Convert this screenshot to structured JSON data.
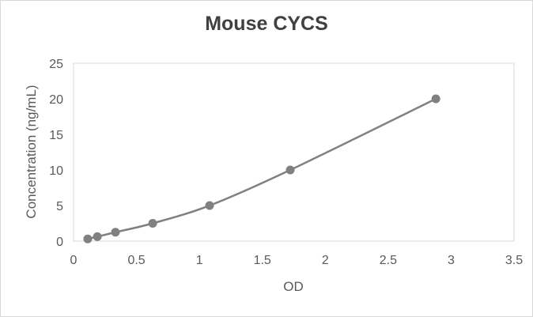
{
  "chart_data": {
    "type": "scatter",
    "title": "Mouse CYCS",
    "xlabel": "OD",
    "ylabel": "Concentration (ng/mL)",
    "xlim": [
      0,
      3.5
    ],
    "ylim": [
      0,
      25
    ],
    "xticks": [
      "0",
      "0.5",
      "1",
      "1.5",
      "2",
      "2.5",
      "3",
      "3.5"
    ],
    "yticks": [
      "0",
      "5",
      "10",
      "15",
      "20",
      "25"
    ],
    "grid": false,
    "smoothed_line": true,
    "series": [
      {
        "color": "#808080",
        "x": [
          0.113,
          0.189,
          0.333,
          0.629,
          1.081,
          1.722,
          2.879
        ],
        "y": [
          0.3125,
          0.625,
          1.25,
          2.5,
          5,
          10,
          20
        ]
      }
    ]
  }
}
